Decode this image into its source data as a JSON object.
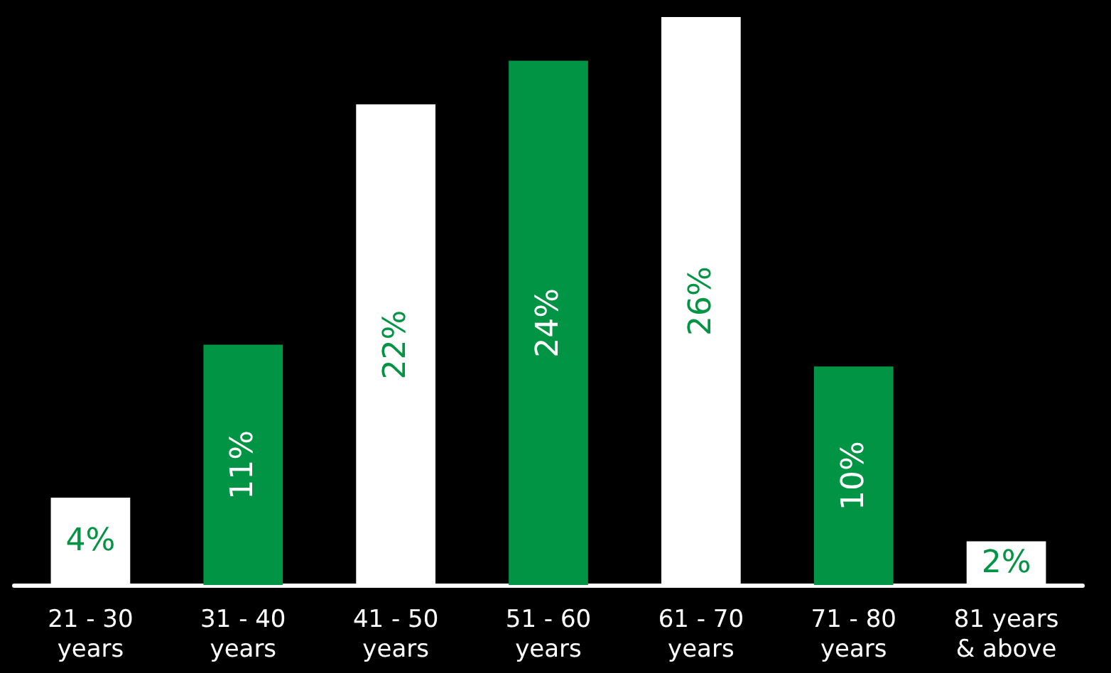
{
  "chart_data": {
    "type": "bar",
    "categories": [
      "21 - 30\nyears",
      "31 - 40\nyears",
      "41 - 50\nyears",
      "51 - 60\nyears",
      "61 - 70\nyears",
      "71 - 80\nyears",
      "81 years\n& above"
    ],
    "values": [
      4,
      11,
      22,
      24,
      26,
      10,
      2
    ],
    "colors": [
      "#ffffff",
      "#009444",
      "#ffffff",
      "#009444",
      "#ffffff",
      "#009444",
      "#ffffff"
    ],
    "value_labels": [
      "4%",
      "11%",
      "22%",
      "24%",
      "26%",
      "10%",
      "2%"
    ]
  }
}
